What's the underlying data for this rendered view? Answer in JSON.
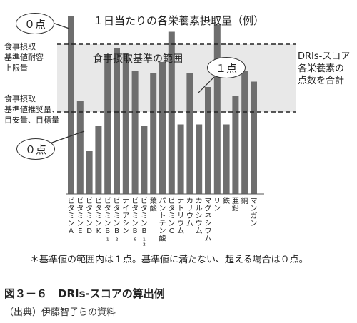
{
  "chart_data": {
    "type": "bar",
    "title": "１日当たりの各栄養素摂取量（例）",
    "band_label": "食事摂取基準の範囲",
    "categories": [
      "ビタミンA",
      "ビタミンE",
      "ビタミンD",
      "ビタミンK",
      "ビタミンB₁",
      "ビタミンB₂",
      "ナイアシン",
      "ビタミンB₆",
      "ビタミンB₁₂",
      "葉酸",
      "パントテン酸",
      "ビタミンC",
      "ナトリウム",
      "カリウム",
      "カルシウム",
      "マグネシウム",
      "リン",
      "鉄",
      "亜鉛",
      "銅",
      "マンガン"
    ],
    "values": [
      100,
      52,
      24,
      38,
      78,
      82,
      79,
      69,
      38,
      68,
      74,
      91,
      39,
      68,
      39,
      60,
      95,
      39,
      55,
      69,
      63
    ],
    "ylim": [
      0,
      100
    ],
    "thresholds": {
      "upper": 84,
      "lower": 46
    },
    "left_labels": {
      "upper": "食事摂取\n基準値耐容\n上限量",
      "lower": "食事摂取\n基準値推奨量、\n目安量、目標量"
    },
    "bubbles": {
      "top": "０点",
      "mid": "１点",
      "bottom": "０点"
    },
    "right_label": "DRIs-スコア\n各栄養素の\n点数を合計",
    "note": "＊基準値の範囲内は１点。基準値に満たない、超える場合は０点。"
  },
  "caption": "図３－６　DRIs-スコアの算出例",
  "source": "（出典）伊藤智子らの資料",
  "colors": {
    "bar": "#6e6e6e",
    "band": "#e8e8e8",
    "line": "#222222"
  }
}
